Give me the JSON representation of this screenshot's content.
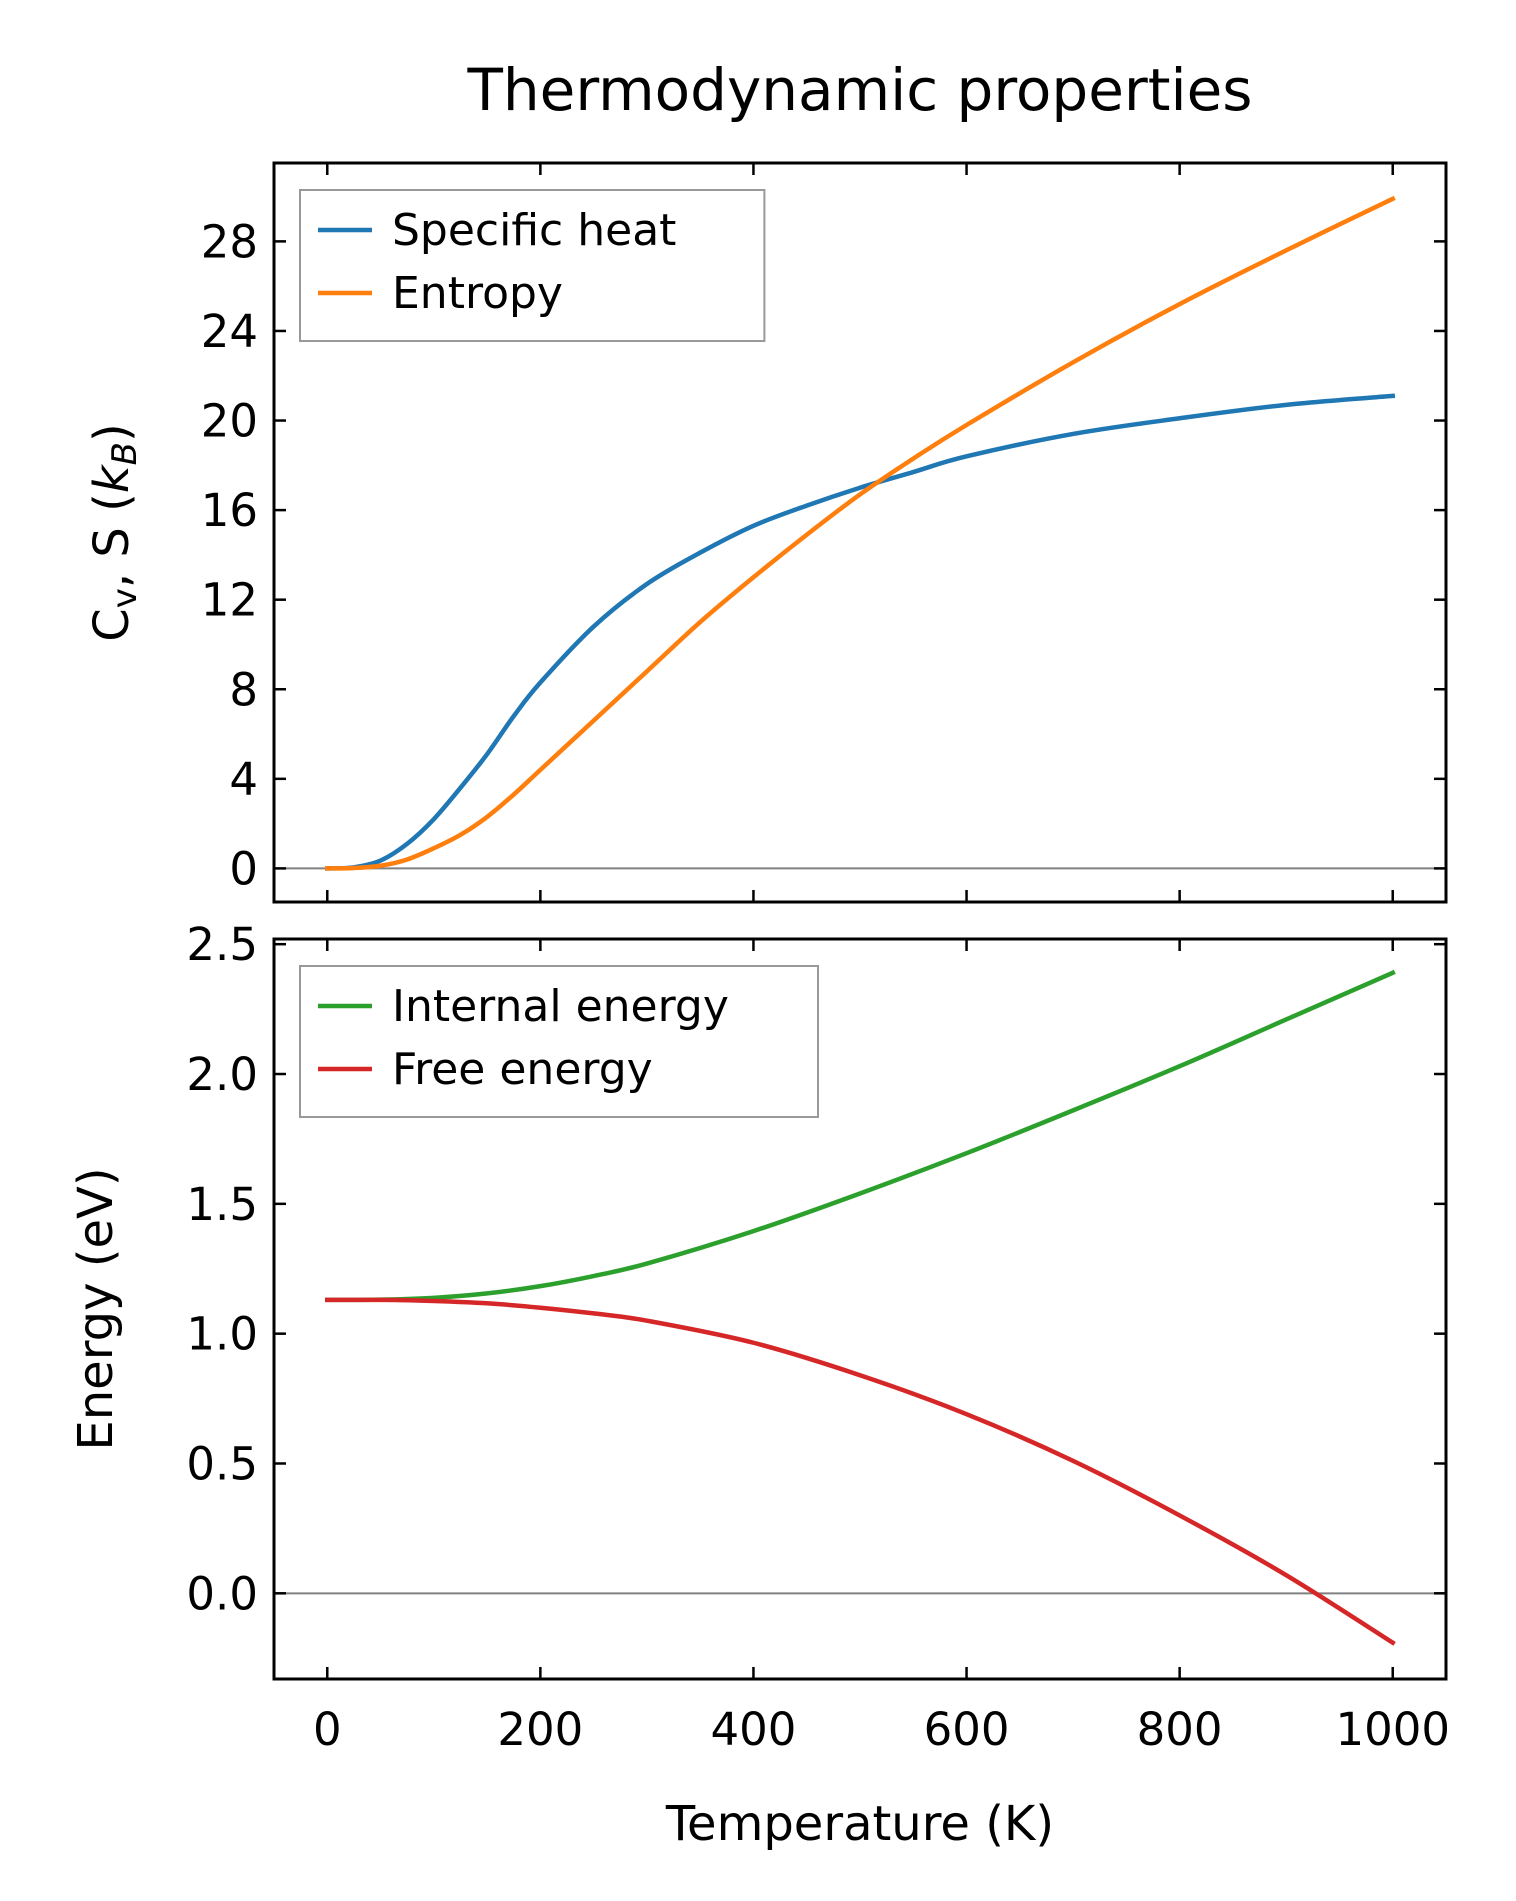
{
  "chart_data": {
    "title": "Thermodynamic properties",
    "xlabel": "Temperature (K)",
    "xlim": [
      -50,
      1050
    ],
    "xticks": [
      0,
      200,
      400,
      600,
      800,
      1000
    ],
    "panels": [
      {
        "type": "line",
        "ylabel": "Cv, S (kB)",
        "ylabel_parts": [
          [
            "C",
            ""
          ],
          [
            "v",
            "sub"
          ],
          [
            ", S (",
            ""
          ],
          [
            "k",
            "it"
          ],
          [
            "B",
            "subit"
          ],
          [
            ")",
            ""
          ]
        ],
        "ylim": [
          -1.5,
          31.5
        ],
        "yticks": [
          0,
          4,
          8,
          12,
          16,
          20,
          24,
          28
        ],
        "ytick_labels": [
          "0",
          "4",
          "8",
          "12",
          "16",
          "20",
          "24",
          "28"
        ],
        "zero_line": true,
        "legend": "top-left",
        "series": [
          {
            "name": "Specific heat",
            "color": "#1f77b4",
            "x": [
              0,
              25,
              50,
              75,
              100,
              125,
              150,
              175,
              200,
              250,
              300,
              350,
              400,
              450,
              500,
              550,
              600,
              700,
              800,
              900,
              1000
            ],
            "y": [
              0,
              0.05,
              0.35,
              1.1,
              2.2,
              3.6,
              5.1,
              6.8,
              8.3,
              10.8,
              12.7,
              14.1,
              15.3,
              16.2,
              17.0,
              17.7,
              18.4,
              19.4,
              20.1,
              20.7,
              21.1
            ]
          },
          {
            "name": "Entropy",
            "color": "#ff7f0e",
            "x": [
              0,
              25,
              50,
              75,
              100,
              125,
              150,
              175,
              200,
              250,
              300,
              350,
              400,
              450,
              500,
              550,
              600,
              700,
              800,
              900,
              1000
            ],
            "y": [
              0,
              0.02,
              0.12,
              0.4,
              0.9,
              1.5,
              2.3,
              3.3,
              4.4,
              6.6,
              8.8,
              11.0,
              13.0,
              14.9,
              16.7,
              18.3,
              19.8,
              22.6,
              25.2,
              27.6,
              29.9
            ]
          }
        ]
      },
      {
        "type": "line",
        "ylabel": "Energy (eV)",
        "ylim": [
          -0.33,
          2.52
        ],
        "yticks": [
          0,
          0.5,
          1.0,
          1.5,
          2.0,
          2.5
        ],
        "ytick_labels": [
          "0.0",
          "0.5",
          "1.0",
          "1.5",
          "2.0",
          "2.5"
        ],
        "zero_line": true,
        "legend": "top-left",
        "series": [
          {
            "name": "Internal energy",
            "color": "#2ca02c",
            "x": [
              0,
              50,
              100,
              150,
              200,
              250,
              300,
              400,
              500,
              600,
              700,
              800,
              900,
              1000
            ],
            "y": [
              1.13,
              1.131,
              1.138,
              1.155,
              1.183,
              1.222,
              1.27,
              1.395,
              1.54,
              1.695,
              1.86,
              2.03,
              2.21,
              2.39
            ]
          },
          {
            "name": "Free energy",
            "color": "#d62728",
            "x": [
              0,
              50,
              100,
              150,
              200,
              250,
              300,
              400,
              500,
              600,
              700,
              800,
              900,
              1000
            ],
            "y": [
              1.13,
              1.13,
              1.126,
              1.117,
              1.1,
              1.078,
              1.05,
              0.965,
              0.84,
              0.69,
              0.51,
              0.3,
              0.07,
              -0.19
            ]
          }
        ]
      }
    ]
  }
}
